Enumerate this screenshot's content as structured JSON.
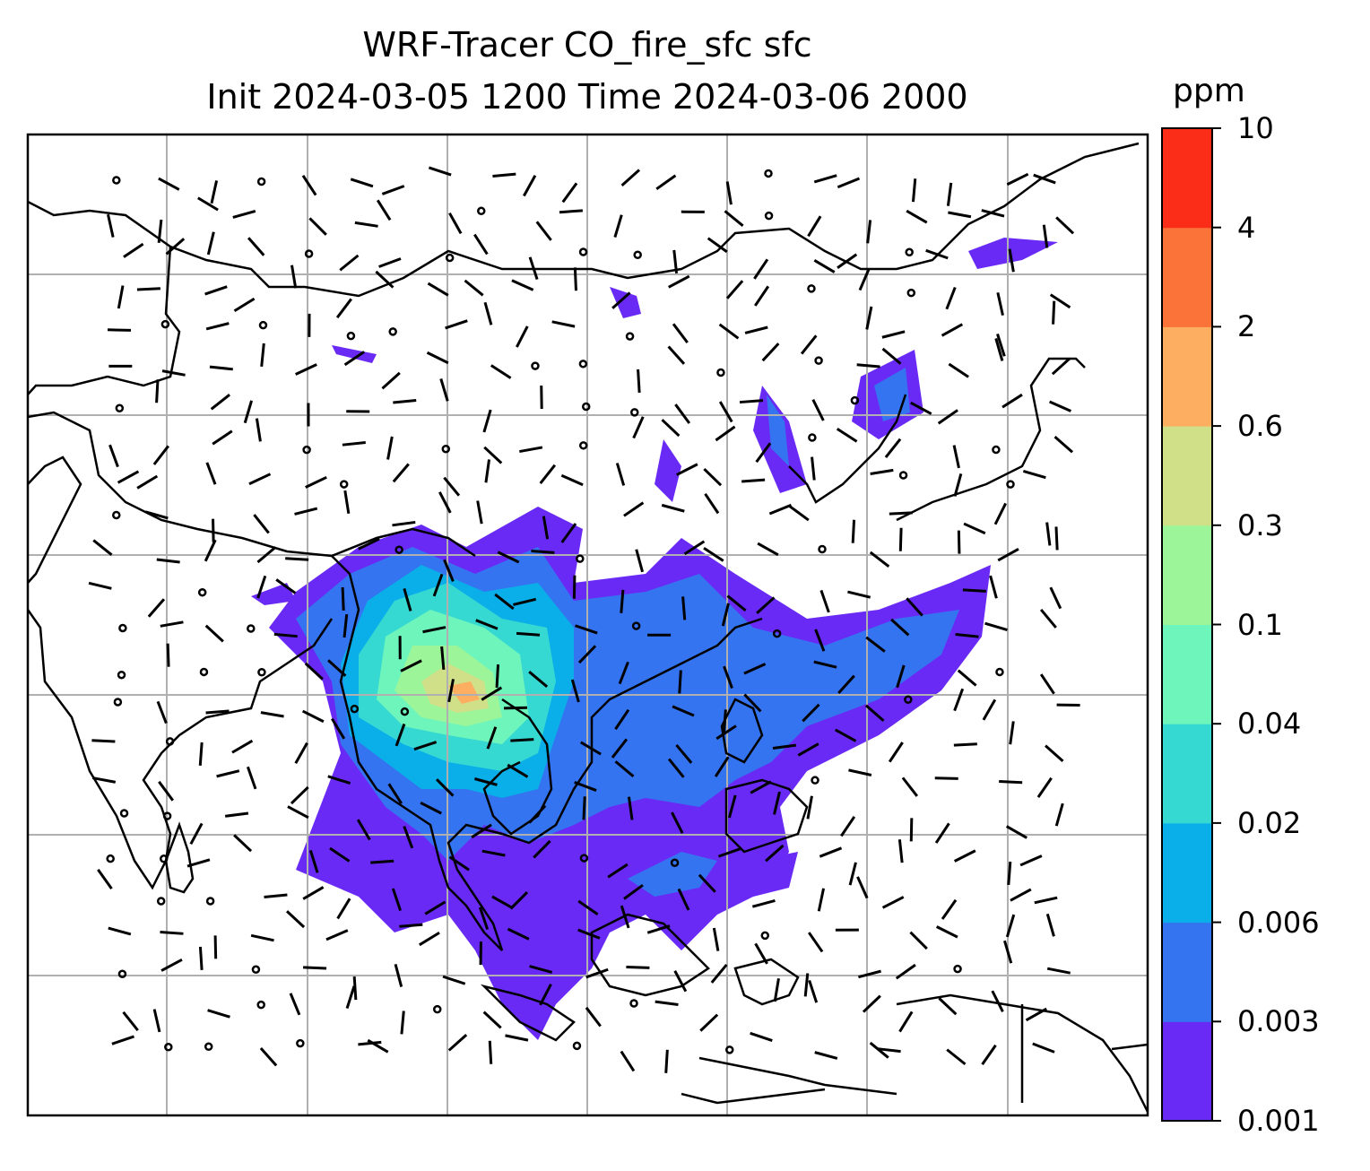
{
  "title_line1": "WRF-Tracer CO_fire_sfc sfc",
  "title_line2": "Init 2024-03-05 1200 Time 2024-03-06 2000",
  "colorbar": {
    "units": "ppm",
    "levels": [
      "0.001",
      "0.003",
      "0.006",
      "0.02",
      "0.04",
      "0.1",
      "0.3",
      "0.6",
      "2",
      "4",
      "10"
    ],
    "colors": [
      "#6a2af5",
      "#3574f0",
      "#0aaee8",
      "#36d9d2",
      "#6df5bb",
      "#9df59a",
      "#d0e089",
      "#fdae61",
      "#fb7339",
      "#fb2c18"
    ]
  },
  "map": {
    "frame_color": "#000000",
    "gridline_color": "#b0b0b0",
    "coastline_color": "#000000",
    "wind_barb_color": "#000000"
  }
}
